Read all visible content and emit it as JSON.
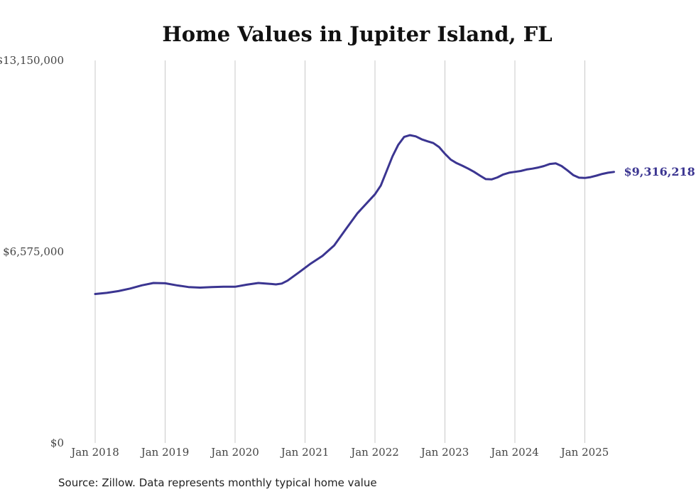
{
  "chart_data": {
    "type": "line",
    "title": "Home Values in Jupiter Island, FL",
    "source": "Source: Zillow. Data represents monthly typical home value",
    "xlabel": "",
    "ylabel": "",
    "ylim": [
      0,
      13150000
    ],
    "y_ticks": [
      {
        "value": 0,
        "label": "$0"
      },
      {
        "value": 6575000,
        "label": "$6,575,000"
      },
      {
        "value": 13150000,
        "label": "$13,150,000"
      }
    ],
    "x_ticks": [
      {
        "value": "2018-01",
        "label": "Jan 2018"
      },
      {
        "value": "2019-01",
        "label": "Jan 2019"
      },
      {
        "value": "2020-01",
        "label": "Jan 2020"
      },
      {
        "value": "2021-01",
        "label": "Jan 2021"
      },
      {
        "value": "2022-01",
        "label": "Jan 2022"
      },
      {
        "value": "2023-01",
        "label": "Jan 2023"
      },
      {
        "value": "2024-01",
        "label": "Jan 2024"
      },
      {
        "value": "2025-01",
        "label": "Jan 2025"
      }
    ],
    "grid": "vertical",
    "line_color": "#3b3591",
    "end_label": "$9,316,218",
    "series": [
      {
        "points": [
          [
            "2018-01",
            5120000
          ],
          [
            "2018-03",
            5160000
          ],
          [
            "2018-05",
            5220000
          ],
          [
            "2018-07",
            5310000
          ],
          [
            "2018-09",
            5420000
          ],
          [
            "2018-11",
            5500000
          ],
          [
            "2019-01",
            5490000
          ],
          [
            "2019-03",
            5420000
          ],
          [
            "2019-05",
            5360000
          ],
          [
            "2019-07",
            5340000
          ],
          [
            "2019-09",
            5360000
          ],
          [
            "2019-11",
            5370000
          ],
          [
            "2020-01",
            5370000
          ],
          [
            "2020-03",
            5440000
          ],
          [
            "2020-05",
            5500000
          ],
          [
            "2020-07",
            5470000
          ],
          [
            "2020-08",
            5450000
          ],
          [
            "2020-09",
            5480000
          ],
          [
            "2020-10",
            5580000
          ],
          [
            "2020-12",
            5870000
          ],
          [
            "2021-02",
            6170000
          ],
          [
            "2021-04",
            6430000
          ],
          [
            "2021-06",
            6790000
          ],
          [
            "2021-08",
            7350000
          ],
          [
            "2021-10",
            7900000
          ],
          [
            "2022-01",
            8550000
          ],
          [
            "2022-02",
            8850000
          ],
          [
            "2022-03",
            9350000
          ],
          [
            "2022-04",
            9850000
          ],
          [
            "2022-05",
            10250000
          ],
          [
            "2022-06",
            10520000
          ],
          [
            "2022-07",
            10580000
          ],
          [
            "2022-08",
            10540000
          ],
          [
            "2022-09",
            10440000
          ],
          [
            "2022-10",
            10370000
          ],
          [
            "2022-11",
            10310000
          ],
          [
            "2022-12",
            10170000
          ],
          [
            "2023-01",
            9940000
          ],
          [
            "2023-02",
            9740000
          ],
          [
            "2023-03",
            9620000
          ],
          [
            "2023-04",
            9530000
          ],
          [
            "2023-05",
            9430000
          ],
          [
            "2023-06",
            9320000
          ],
          [
            "2023-07",
            9190000
          ],
          [
            "2023-08",
            9070000
          ],
          [
            "2023-09",
            9060000
          ],
          [
            "2023-10",
            9130000
          ],
          [
            "2023-11",
            9230000
          ],
          [
            "2023-12",
            9290000
          ],
          [
            "2024-01",
            9320000
          ],
          [
            "2024-02",
            9350000
          ],
          [
            "2024-03",
            9400000
          ],
          [
            "2024-04",
            9430000
          ],
          [
            "2024-05",
            9470000
          ],
          [
            "2024-06",
            9520000
          ],
          [
            "2024-07",
            9590000
          ],
          [
            "2024-08",
            9610000
          ],
          [
            "2024-09",
            9520000
          ],
          [
            "2024-10",
            9370000
          ],
          [
            "2024-11",
            9210000
          ],
          [
            "2024-12",
            9120000
          ],
          [
            "2025-01",
            9110000
          ],
          [
            "2025-02",
            9140000
          ],
          [
            "2025-03",
            9190000
          ],
          [
            "2025-04",
            9250000
          ],
          [
            "2025-05",
            9290000
          ],
          [
            "2025-06",
            9316218
          ]
        ]
      }
    ]
  }
}
